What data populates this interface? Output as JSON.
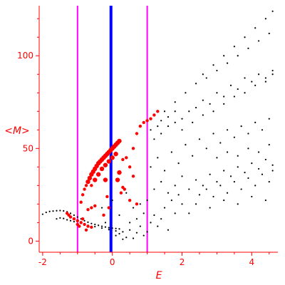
{
  "chart_data": {
    "type": "scatter",
    "title": "",
    "xlabel": "E",
    "ylabel": "<M>",
    "xlim": [
      -2.1,
      4.75
    ],
    "ylim": [
      -6,
      127
    ],
    "grid": false,
    "legend": "none",
    "x_ticks": [
      -2,
      0,
      2,
      4
    ],
    "y_ticks": [
      0,
      50,
      100
    ],
    "axis_color": "#ff0000",
    "vertical_lines": [
      {
        "x": -1.0,
        "color": "#ff00ff"
      },
      {
        "x": -0.04,
        "color": "#0000ff"
      },
      {
        "x": 1.0,
        "color": "#ff00ff"
      }
    ],
    "series": [
      {
        "color": "#000000",
        "points": [
          [
            -2.0,
            14.5
          ],
          [
            -1.9,
            15.5
          ],
          [
            -1.8,
            16.0
          ],
          [
            -1.7,
            16.2
          ],
          [
            -1.6,
            16.4
          ],
          [
            -1.5,
            16.5
          ],
          [
            -1.4,
            16.3
          ],
          [
            -1.3,
            15.8
          ],
          [
            -1.2,
            15.0
          ],
          [
            -1.1,
            14.0
          ],
          [
            -1.0,
            13.0
          ],
          [
            -0.9,
            12.0
          ],
          [
            -0.8,
            11.0
          ],
          [
            -0.7,
            10.2
          ],
          [
            -0.6,
            9.5
          ],
          [
            -0.5,
            9.0
          ],
          [
            -0.4,
            8.5
          ],
          [
            -0.3,
            8.0
          ],
          [
            -0.2,
            7.6
          ],
          [
            -0.1,
            7.2
          ],
          [
            0.0,
            7.0
          ],
          [
            0.1,
            6.8
          ],
          [
            0.2,
            6.6
          ],
          [
            -1.6,
            12.0
          ],
          [
            -1.5,
            12.5
          ],
          [
            -1.4,
            12.2
          ],
          [
            -1.3,
            11.5
          ],
          [
            -1.2,
            11.0
          ],
          [
            -1.1,
            10.5
          ],
          [
            -0.9,
            9.5
          ],
          [
            -0.7,
            8.5
          ],
          [
            -0.5,
            7.8
          ],
          [
            -0.3,
            7.0
          ],
          [
            -0.1,
            6.2
          ],
          [
            0.1,
            5.5
          ],
          [
            0.1,
            3.0
          ],
          [
            0.2,
            4.0
          ],
          [
            0.3,
            5.0
          ],
          [
            0.4,
            2.0
          ],
          [
            0.5,
            6.0
          ],
          [
            0.6,
            1.5
          ],
          [
            0.7,
            4.5
          ],
          [
            0.8,
            8.0
          ],
          [
            0.9,
            3.0
          ],
          [
            0.3,
            1.0
          ],
          [
            0.5,
            10.0
          ],
          [
            0.7,
            12.0
          ],
          [
            0.9,
            15.0
          ],
          [
            0.6,
            18.0
          ],
          [
            0.8,
            20.0
          ],
          [
            1.0,
            5.0
          ],
          [
            1.1,
            10.0
          ],
          [
            1.2,
            14.0
          ],
          [
            1.3,
            8.0
          ],
          [
            1.4,
            12.0
          ],
          [
            1.5,
            18.0
          ],
          [
            1.6,
            6.0
          ],
          [
            1.7,
            22.0
          ],
          [
            1.8,
            15.0
          ],
          [
            1.9,
            25.0
          ],
          [
            2.0,
            20.0
          ],
          [
            1.0,
            22.0
          ],
          [
            1.2,
            28.0
          ],
          [
            1.4,
            32.0
          ],
          [
            1.6,
            26.0
          ],
          [
            1.8,
            30.0
          ],
          [
            2.0,
            35.0
          ],
          [
            2.2,
            28.0
          ],
          [
            2.4,
            33.0
          ],
          [
            2.6,
            30.0
          ],
          [
            2.8,
            36.0
          ],
          [
            3.0,
            32.0
          ],
          [
            3.2,
            38.0
          ],
          [
            3.4,
            35.0
          ],
          [
            3.6,
            40.0
          ],
          [
            3.8,
            37.0
          ],
          [
            4.0,
            42.0
          ],
          [
            4.2,
            39.0
          ],
          [
            4.4,
            44.0
          ],
          [
            4.6,
            41.0
          ],
          [
            1.1,
            40.0
          ],
          [
            1.3,
            45.0
          ],
          [
            1.5,
            38.0
          ],
          [
            1.7,
            48.0
          ],
          [
            1.9,
            42.0
          ],
          [
            2.1,
            52.0
          ],
          [
            2.3,
            46.0
          ],
          [
            2.5,
            55.0
          ],
          [
            2.7,
            50.0
          ],
          [
            2.9,
            58.0
          ],
          [
            3.1,
            53.0
          ],
          [
            3.3,
            60.0
          ],
          [
            3.5,
            56.0
          ],
          [
            3.7,
            62.0
          ],
          [
            3.9,
            58.0
          ],
          [
            4.1,
            64.0
          ],
          [
            4.3,
            60.0
          ],
          [
            4.5,
            66.0
          ],
          [
            1.2,
            55.0
          ],
          [
            1.4,
            58.0
          ],
          [
            1.6,
            62.0
          ],
          [
            1.8,
            64.0
          ],
          [
            2.0,
            66.0
          ],
          [
            2.2,
            70.0
          ],
          [
            2.4,
            72.0
          ],
          [
            2.6,
            76.0
          ],
          [
            2.8,
            74.0
          ],
          [
            3.0,
            80.0
          ],
          [
            3.2,
            78.0
          ],
          [
            3.4,
            84.0
          ],
          [
            3.6,
            82.0
          ],
          [
            3.8,
            88.0
          ],
          [
            4.0,
            86.0
          ],
          [
            4.2,
            90.0
          ],
          [
            4.4,
            88.0
          ],
          [
            4.6,
            92.0
          ],
          [
            1.5,
            70.0
          ],
          [
            1.8,
            75.0
          ],
          [
            2.1,
            80.0
          ],
          [
            2.4,
            85.0
          ],
          [
            2.7,
            88.0
          ],
          [
            3.0,
            92.0
          ],
          [
            3.3,
            96.0
          ],
          [
            3.6,
            100.0
          ],
          [
            3.9,
            104.0
          ],
          [
            4.2,
            108.0
          ],
          [
            4.5,
            112.0
          ],
          [
            2.0,
            60.0
          ],
          [
            2.3,
            64.0
          ],
          [
            2.6,
            68.0
          ],
          [
            2.9,
            70.0
          ],
          [
            3.2,
            74.0
          ],
          [
            3.5,
            78.0
          ],
          [
            3.8,
            80.0
          ],
          [
            4.1,
            84.0
          ],
          [
            4.4,
            86.0
          ],
          [
            4.6,
            90.0
          ],
          [
            2.6,
            90.0
          ],
          [
            2.9,
            95.0
          ],
          [
            3.2,
            100.0
          ],
          [
            3.5,
            105.0
          ],
          [
            3.8,
            110.0
          ],
          [
            4.1,
            115.0
          ],
          [
            4.4,
            120.0
          ],
          [
            4.6,
            124.0
          ],
          [
            1.3,
            62.0
          ],
          [
            1.4,
            65.0
          ],
          [
            1.6,
            67.0
          ],
          [
            1.8,
            70.0
          ],
          [
            1.1,
            60.0
          ],
          [
            2.5,
            25.0
          ],
          [
            2.7,
            28.0
          ],
          [
            2.9,
            24.0
          ],
          [
            3.1,
            30.0
          ],
          [
            3.3,
            26.0
          ],
          [
            3.5,
            32.0
          ],
          [
            3.7,
            28.0
          ],
          [
            3.9,
            34.0
          ],
          [
            4.1,
            30.0
          ],
          [
            4.3,
            36.0
          ],
          [
            4.5,
            32.0
          ],
          [
            4.6,
            38.0
          ],
          [
            2.2,
            15.0
          ],
          [
            2.4,
            20.0
          ],
          [
            2.8,
            18.0
          ],
          [
            3.2,
            22.0
          ],
          [
            3.6,
            20.0
          ],
          [
            4.0,
            24.0
          ],
          [
            4.4,
            22.0
          ],
          [
            3.0,
            45.0
          ],
          [
            3.3,
            48.0
          ],
          [
            3.6,
            46.0
          ],
          [
            3.9,
            50.0
          ],
          [
            4.2,
            48.0
          ],
          [
            4.5,
            52.0
          ],
          [
            -0.3,
            18.0
          ],
          [
            -0.2,
            10.0
          ],
          [
            0.0,
            22.0
          ],
          [
            0.2,
            14.0
          ],
          [
            0.4,
            26.0
          ]
        ]
      },
      {
        "color": "#ff0000",
        "points": [
          [
            -1.3,
            15.0
          ],
          [
            -1.25,
            14.0
          ],
          [
            -1.2,
            13.0
          ],
          [
            -1.1,
            12.0
          ],
          [
            -1.0,
            11.0
          ],
          [
            -0.9,
            10.0
          ],
          [
            -0.8,
            9.0
          ],
          [
            -0.7,
            8.0
          ],
          [
            -0.6,
            7.5
          ],
          [
            -0.9,
            21.0
          ],
          [
            -0.85,
            25.0
          ],
          [
            -0.8,
            28.0
          ],
          [
            -0.75,
            30.0
          ],
          [
            -0.7,
            32.0
          ],
          [
            -0.65,
            34.0
          ],
          [
            -0.6,
            36.0
          ],
          [
            -0.55,
            37.5
          ],
          [
            -0.5,
            39.0
          ],
          [
            -0.45,
            40.5
          ],
          [
            -0.4,
            42.0
          ],
          [
            -0.35,
            43.0
          ],
          [
            -0.3,
            44.0
          ],
          [
            -0.25,
            45.0
          ],
          [
            -0.2,
            46.0
          ],
          [
            -0.15,
            47.0
          ],
          [
            -0.1,
            48.0
          ],
          [
            -0.05,
            49.0
          ],
          [
            0.0,
            50.0
          ],
          [
            0.05,
            51.0
          ],
          [
            0.1,
            52.0
          ],
          [
            0.15,
            53.0
          ],
          [
            0.2,
            54.0
          ],
          [
            -0.6,
            30.0
          ],
          [
            -0.5,
            33.0
          ],
          [
            -0.4,
            36.0
          ],
          [
            -0.3,
            39.0
          ],
          [
            -0.2,
            41.0
          ],
          [
            -0.1,
            43.0
          ],
          [
            0.0,
            45.0
          ],
          [
            0.1,
            47.0
          ],
          [
            0.3,
            44.0
          ],
          [
            0.4,
            45.0
          ],
          [
            0.5,
            40.0
          ],
          [
            0.6,
            50.0
          ],
          [
            0.7,
            58.0
          ],
          [
            0.8,
            62.0
          ],
          [
            0.9,
            64.0
          ],
          [
            1.0,
            65.0
          ],
          [
            0.2,
            37.0
          ],
          [
            0.3,
            29.0
          ],
          [
            0.35,
            28.0
          ],
          [
            0.6,
            35.0
          ],
          [
            0.7,
            20.0
          ],
          [
            0.5,
            22.0
          ],
          [
            0.15,
            33.0
          ],
          [
            0.25,
            26.0
          ],
          [
            -0.2,
            33.0
          ],
          [
            -0.15,
            24.0
          ],
          [
            -0.1,
            18.0
          ],
          [
            -0.25,
            14.0
          ],
          [
            -0.7,
            17.0
          ],
          [
            -0.6,
            18.0
          ],
          [
            -0.5,
            19.0
          ],
          [
            -1.0,
            9.0
          ],
          [
            -0.95,
            8.0
          ],
          [
            -0.85,
            12.0
          ],
          [
            -0.75,
            6.0
          ],
          [
            1.1,
            66.0
          ],
          [
            1.2,
            68.0
          ],
          [
            1.3,
            70.0
          ]
        ]
      }
    ]
  }
}
